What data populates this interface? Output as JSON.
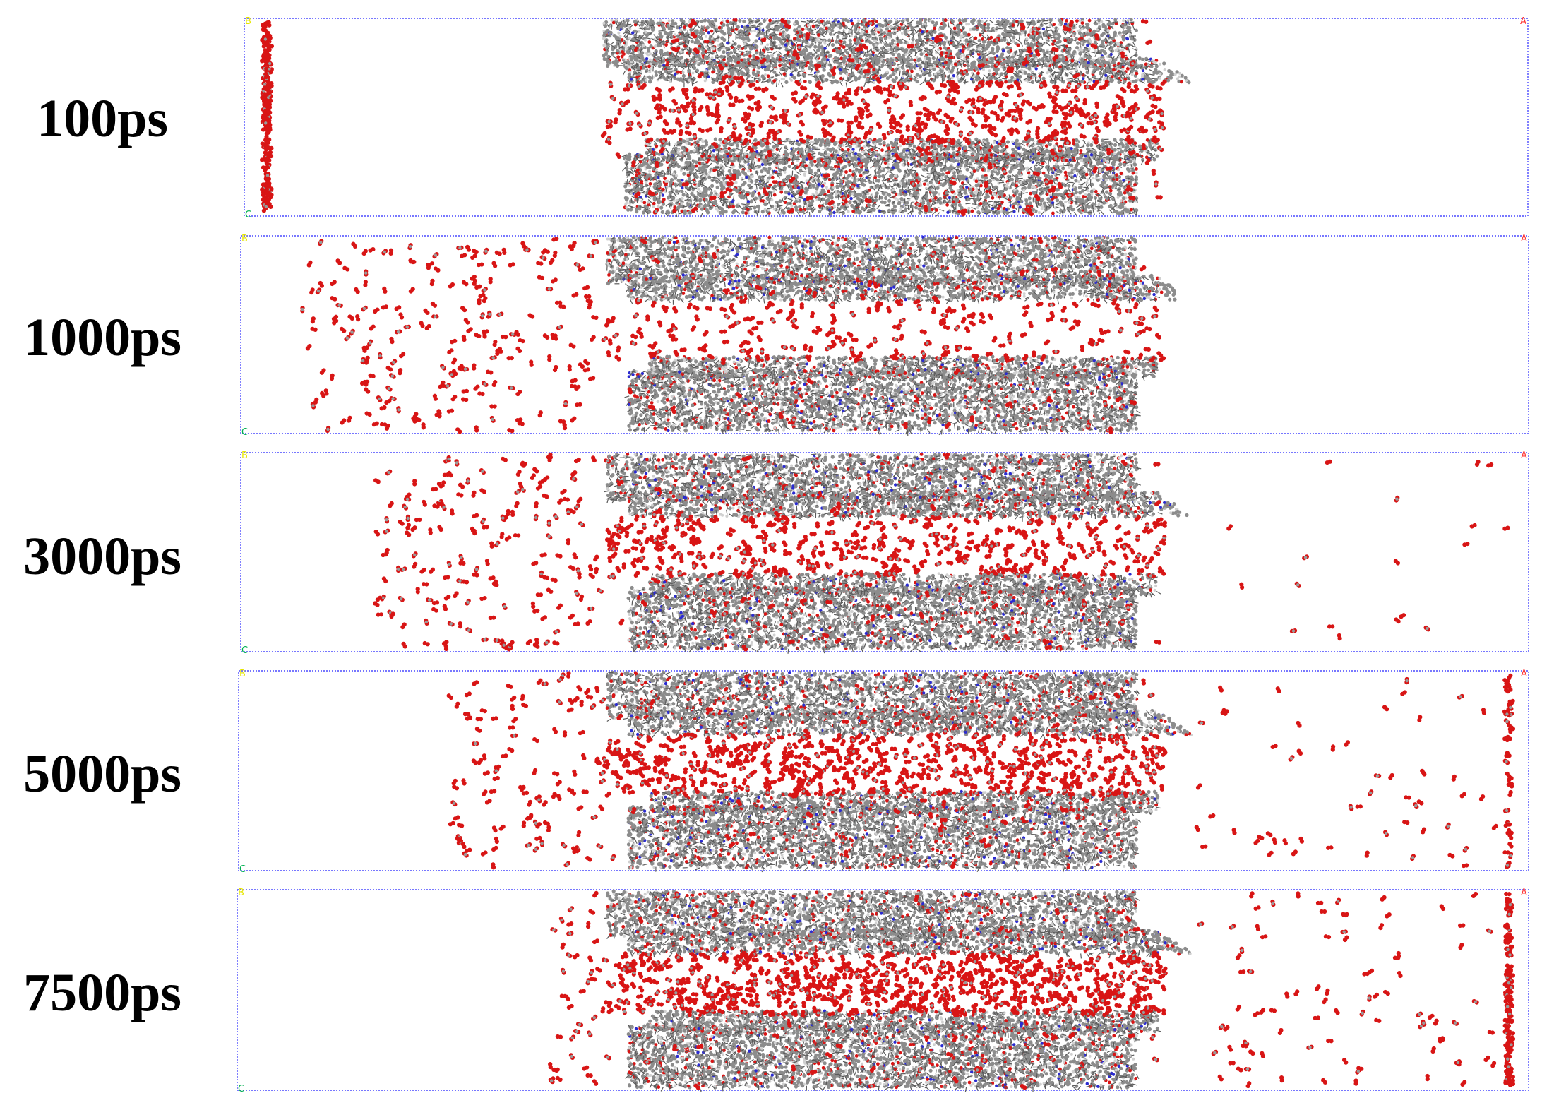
{
  "snapshots": [
    {
      "time_label": "100ps"
    },
    {
      "time_label": "1000ps"
    },
    {
      "time_label": "3000ps"
    },
    {
      "time_label": "5000ps"
    },
    {
      "time_label": "7500ps"
    }
  ],
  "axis_labels": {
    "a": "A",
    "b": "B",
    "c": "C"
  },
  "colors": {
    "molecule_red": "#d81515",
    "molecule_gray": "#8c8c8c",
    "molecule_light": "#d0d0d0",
    "nitrogen_blue": "#2b2bd0",
    "cell_border": "#4a4aff",
    "axis_a": "#ff3030",
    "axis_b": "#e6e600",
    "axis_c": "#00b050"
  }
}
